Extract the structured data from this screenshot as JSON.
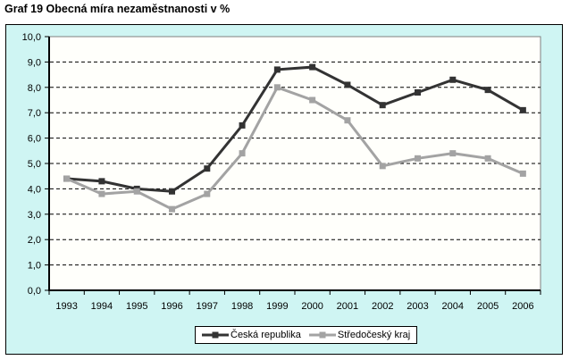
{
  "chart_data": {
    "type": "line",
    "title": "Graf 19 Obecná míra nezaměstnanosti v %",
    "categories": [
      "1993",
      "1994",
      "1995",
      "1996",
      "1997",
      "1998",
      "1999",
      "2000",
      "2001",
      "2002",
      "2003",
      "2004",
      "2005",
      "2006"
    ],
    "series": [
      {
        "id": "ceska-republika",
        "name": "Česká republika",
        "color": "#333333",
        "marker": "square",
        "values": [
          4.4,
          4.3,
          4.0,
          3.9,
          4.8,
          6.5,
          8.7,
          8.8,
          8.1,
          7.3,
          7.8,
          8.3,
          7.9,
          7.1
        ]
      },
      {
        "id": "stredocesky-kraj",
        "name": "Středočeský kraj",
        "color": "#a3a3a3",
        "marker": "square",
        "values": [
          4.4,
          3.8,
          3.9,
          3.2,
          3.8,
          5.4,
          8.0,
          7.5,
          6.7,
          4.9,
          5.2,
          5.4,
          5.2,
          4.6
        ]
      }
    ],
    "xlabel": "",
    "ylabel": "",
    "ylim": [
      0,
      10
    ],
    "ytick_step": 1,
    "ytick_labels": [
      "0,0",
      "1,0",
      "2,0",
      "3,0",
      "4,0",
      "5,0",
      "6,0",
      "7,0",
      "8,0",
      "9,0",
      "10,0"
    ],
    "grid": "horizontal-dashed",
    "legend_position": "bottom-center",
    "colors": {
      "chart_background": "#cff5f3",
      "plot_background": "#fffffb",
      "plot_border": "#808080",
      "axis": "#000000",
      "gridline": "#000000",
      "chart_border": "#000000",
      "legend_background": "#ffffff",
      "legend_border": "#000000"
    }
  }
}
